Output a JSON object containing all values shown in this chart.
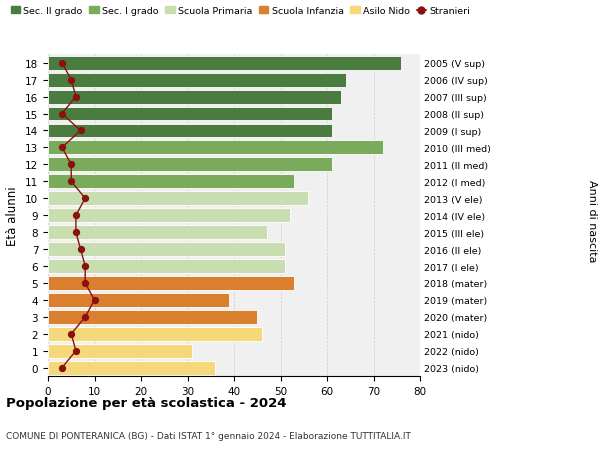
{
  "ages": [
    18,
    17,
    16,
    15,
    14,
    13,
    12,
    11,
    10,
    9,
    8,
    7,
    6,
    5,
    4,
    3,
    2,
    1,
    0
  ],
  "right_labels": [
    "2005 (V sup)",
    "2006 (IV sup)",
    "2007 (III sup)",
    "2008 (II sup)",
    "2009 (I sup)",
    "2010 (III med)",
    "2011 (II med)",
    "2012 (I med)",
    "2013 (V ele)",
    "2014 (IV ele)",
    "2015 (III ele)",
    "2016 (II ele)",
    "2017 (I ele)",
    "2018 (mater)",
    "2019 (mater)",
    "2020 (mater)",
    "2021 (nido)",
    "2022 (nido)",
    "2023 (nido)"
  ],
  "bar_values": [
    76,
    64,
    63,
    61,
    61,
    72,
    61,
    53,
    56,
    52,
    47,
    51,
    51,
    53,
    39,
    45,
    46,
    31,
    36
  ],
  "bar_colors": [
    "#4a7c3f",
    "#4a7c3f",
    "#4a7c3f",
    "#4a7c3f",
    "#4a7c3f",
    "#7aab5a",
    "#7aab5a",
    "#7aab5a",
    "#c8ddb0",
    "#c8ddb0",
    "#c8ddb0",
    "#c8ddb0",
    "#c8ddb0",
    "#d97f2d",
    "#d97f2d",
    "#d97f2d",
    "#f5d87a",
    "#f5d87a",
    "#f5d87a"
  ],
  "stranieri_values": [
    3,
    5,
    6,
    3,
    7,
    3,
    5,
    5,
    8,
    6,
    6,
    7,
    8,
    8,
    10,
    8,
    5,
    6,
    3
  ],
  "stranieri_color": "#8b1010",
  "legend_labels": [
    "Sec. II grado",
    "Sec. I grado",
    "Scuola Primaria",
    "Scuola Infanzia",
    "Asilo Nido",
    "Stranieri"
  ],
  "legend_colors": [
    "#4a7c3f",
    "#7aab5a",
    "#c8ddb0",
    "#d97f2d",
    "#f5d87a",
    "#8b1010"
  ],
  "ylabel": "Età alunni",
  "right_ylabel": "Anni di nascita",
  "title": "Popolazione per età scolastica - 2024",
  "subtitle": "COMUNE DI PONTERANICA (BG) - Dati ISTAT 1° gennaio 2024 - Elaborazione TUTTITALIA.IT",
  "xlim": [
    0,
    80
  ],
  "xticks": [
    0,
    10,
    20,
    30,
    40,
    50,
    60,
    70,
    80
  ],
  "bg_color": "#ffffff",
  "bar_bg_color": "#f0f0f0",
  "grid_color": "#cccccc"
}
